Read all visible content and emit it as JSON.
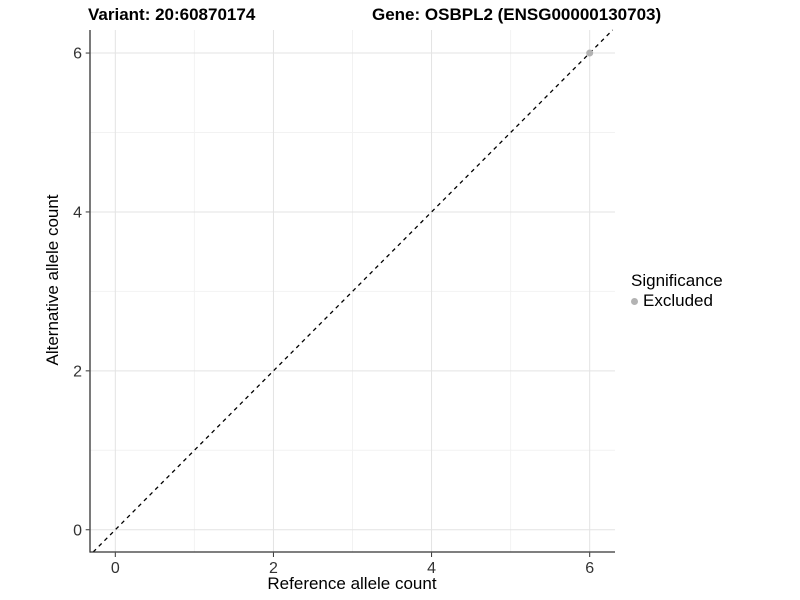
{
  "titles": {
    "left": "Variant: 20:60870174",
    "right": "Gene: OSBPL2 (ENSG00000130703)"
  },
  "chart_data": {
    "type": "scatter",
    "title_left": "Variant: 20:60870174",
    "title_right": "Gene: OSBPL2 (ENSG00000130703)",
    "xlabel": "Reference allele count",
    "ylabel": "Alternative allele count",
    "xlim": [
      -0.32,
      6.32
    ],
    "ylim": [
      -0.28,
      6.29
    ],
    "x_ticks": [
      0,
      2,
      4,
      6
    ],
    "y_ticks": [
      0,
      2,
      4,
      6
    ],
    "x_minor_ticks": [
      1,
      3,
      5
    ],
    "y_minor_ticks": [
      1,
      3,
      5
    ],
    "grid": "major+minor, light gray on white panel",
    "identity_line": {
      "type": "dashed",
      "slope": 1,
      "intercept": 0
    },
    "series": [
      {
        "name": "Excluded",
        "marker": "circle",
        "color": "#b3b3b3",
        "points": [
          {
            "x": 6,
            "y": 6
          }
        ]
      }
    ],
    "legend": {
      "title": "Significance",
      "position": "right",
      "items": [
        {
          "label": "Excluded",
          "color": "#b3b3b3"
        }
      ]
    }
  },
  "colors": {
    "background": "#ffffff",
    "grid_major": "#e3e3e3",
    "grid_minor": "#f2f2f2",
    "axis_line": "#333333",
    "tick_label": "#333333",
    "axis_title": "#000000",
    "identity_line": "#000000",
    "excluded_point": "#b3b3b3"
  }
}
